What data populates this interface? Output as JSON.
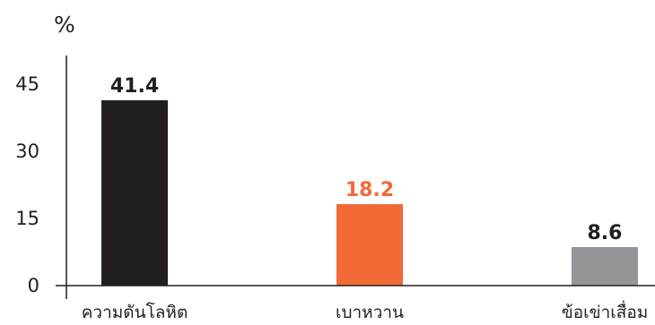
{
  "chart_data": {
    "type": "bar",
    "title": "",
    "ylabel": "%",
    "xlabel": "",
    "ylim": [
      0,
      45
    ],
    "yticks": [
      0,
      15,
      30,
      45
    ],
    "grid": false,
    "categories": [
      "ความดันโลหิต",
      "เบาหวาน",
      "ข้อเข่าเสื่อม"
    ],
    "values": [
      41.4,
      18.2,
      8.6
    ],
    "value_labels": [
      "41.4",
      "18.2",
      "8.6"
    ],
    "bar_colors": [
      "#231f20",
      "#f26a36",
      "#939598"
    ],
    "value_label_colors": [
      "#231f20",
      "#f26a36",
      "#231f20"
    ],
    "axis_color": "#231f20"
  }
}
